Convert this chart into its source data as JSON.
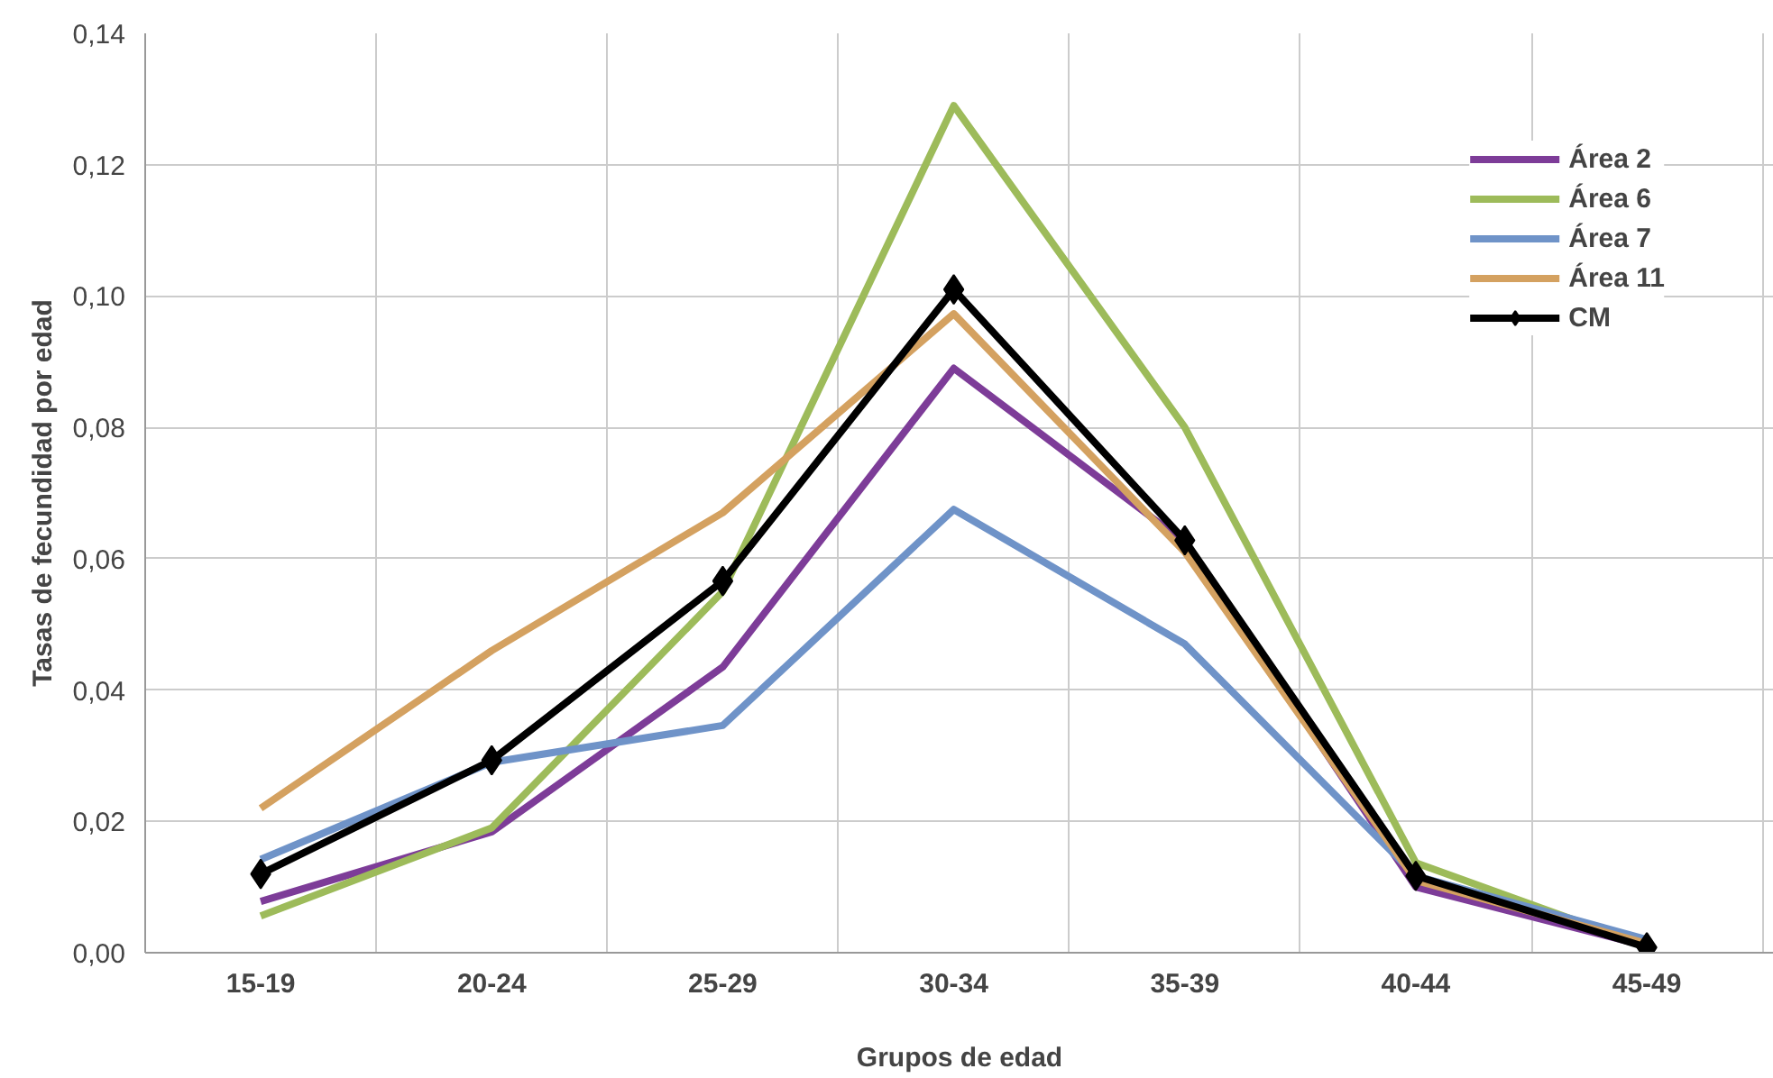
{
  "chart_data": {
    "type": "line",
    "xlabel": "Grupos de edad",
    "ylabel": "Tasas de fecundidad por edad",
    "categories": [
      "15-19",
      "20-24",
      "25-29",
      "30-34",
      "35-39",
      "40-44",
      "45-49"
    ],
    "ylim": [
      0,
      0.14
    ],
    "yticks": [
      {
        "value": 0,
        "label": "0,00"
      },
      {
        "value": 0.02,
        "label": "0,02"
      },
      {
        "value": 0.04,
        "label": "0,04"
      },
      {
        "value": 0.06,
        "label": "0,06"
      },
      {
        "value": 0.08,
        "label": "0,08"
      },
      {
        "value": 0.1,
        "label": "0,10"
      },
      {
        "value": 0.12,
        "label": "0,12"
      },
      {
        "value": 0.14,
        "label": "0,14"
      }
    ],
    "grid": true,
    "legend": "top right",
    "line_style": "solid",
    "series": [
      {
        "name": "Área 2",
        "color": "#7d3c98",
        "marker": "none",
        "values": [
          0.0078,
          0.0184,
          0.0435,
          0.089,
          0.0625,
          0.01,
          0.001
        ]
      },
      {
        "name": "Área 6",
        "color": "#9dbb5a",
        "marker": "none",
        "values": [
          0.0056,
          0.019,
          0.055,
          0.129,
          0.08,
          0.0137,
          0.001
        ]
      },
      {
        "name": "Área 7",
        "color": "#6f93c8",
        "marker": "none",
        "values": [
          0.0142,
          0.029,
          0.0346,
          0.0675,
          0.047,
          0.0117,
          0.002
        ]
      },
      {
        "name": "Área 11",
        "color": "#d4a160",
        "marker": "none",
        "values": [
          0.022,
          0.046,
          0.067,
          0.0973,
          0.061,
          0.011,
          0.0014
        ]
      },
      {
        "name": "CM",
        "color": "#000000",
        "marker": "diamond",
        "values": [
          0.012,
          0.0293,
          0.0566,
          0.101,
          0.0628,
          0.0117,
          0.0008
        ]
      }
    ]
  }
}
